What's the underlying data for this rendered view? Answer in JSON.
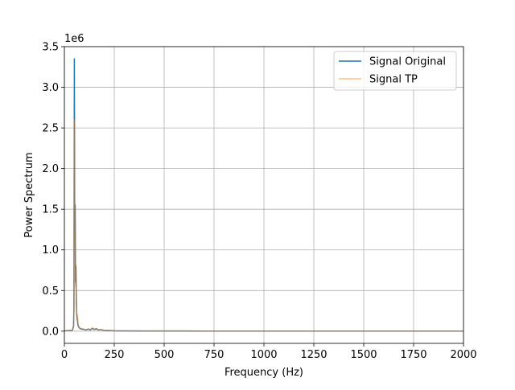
{
  "chart_data": {
    "type": "line",
    "title": "",
    "xlabel": "Frequency (Hz)",
    "ylabel": "Power Spectrum",
    "y_offset_label": "1e6",
    "xlim": [
      0,
      2000
    ],
    "ylim": [
      -150000,
      3500000
    ],
    "xticks": [
      0,
      250,
      500,
      750,
      1000,
      1250,
      1500,
      1750,
      2000
    ],
    "xtick_labels": [
      "0",
      "250",
      "500",
      "750",
      "1000",
      "1250",
      "1500",
      "1750",
      "2000"
    ],
    "yticks": [
      0,
      500000,
      1000000,
      1500000,
      2000000,
      2500000,
      3000000,
      3500000
    ],
    "ytick_labels": [
      "0.0",
      "0.5",
      "1.0",
      "1.5",
      "2.0",
      "2.5",
      "3.0",
      "3.5"
    ],
    "grid": true,
    "legend_position": "top-right",
    "series": [
      {
        "name": "Signal Original",
        "color": "#1f77b4",
        "opacity": 1.0,
        "x": [
          0,
          40,
          46,
          48,
          50,
          52,
          54,
          56,
          58,
          60,
          62,
          64,
          66,
          68,
          70,
          75,
          80,
          90,
          100,
          110,
          120,
          130,
          140,
          150,
          160,
          170,
          180,
          200,
          220,
          250,
          300,
          400,
          600,
          1000,
          1500,
          2000
        ],
        "y": [
          5000,
          10000,
          60000,
          300000,
          3350000,
          1200000,
          1550000,
          600000,
          800000,
          400000,
          200000,
          150000,
          120000,
          80000,
          60000,
          40000,
          30000,
          25000,
          20000,
          15000,
          25000,
          15000,
          35000,
          20000,
          30000,
          15000,
          20000,
          10000,
          8000,
          5000,
          3000,
          2000,
          1500,
          1000,
          800,
          500
        ]
      },
      {
        "name": "Signal TP",
        "color": "#ff7f0e",
        "opacity": 0.5,
        "x": [
          0,
          40,
          46,
          48,
          50,
          52,
          54,
          56,
          58,
          60,
          62,
          64,
          66,
          68,
          70,
          75,
          80,
          90,
          100,
          110,
          120,
          130,
          140,
          150,
          160,
          170,
          180,
          200,
          220,
          250,
          300,
          400,
          600,
          1000,
          1500,
          2000
        ],
        "y": [
          5000,
          10000,
          50000,
          250000,
          2600000,
          1000000,
          1500000,
          550000,
          820000,
          380000,
          200000,
          180000,
          200000,
          100000,
          70000,
          45000,
          35000,
          30000,
          25000,
          18000,
          30000,
          20000,
          40000,
          25000,
          35000,
          15000,
          20000,
          10000,
          8000,
          5000,
          3000,
          2000,
          1500,
          1000,
          800,
          500
        ]
      }
    ]
  }
}
